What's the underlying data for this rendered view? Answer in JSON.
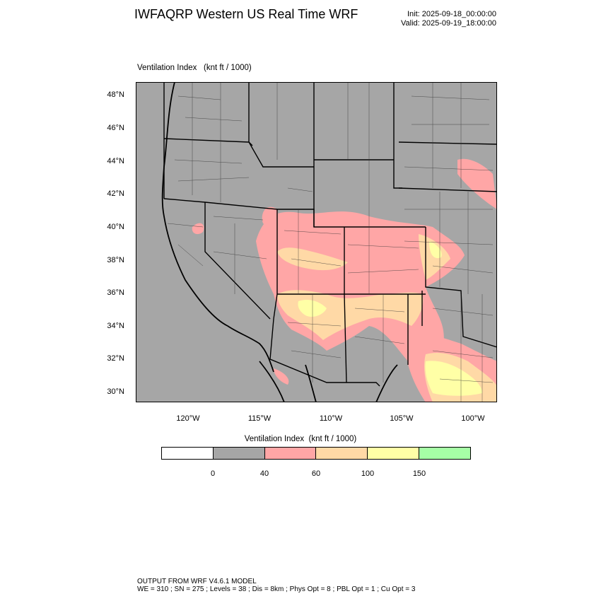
{
  "header": {
    "title": "IWFAQRP Western US Real Time WRF",
    "init": "Init: 2025-09-18_00:00:00",
    "valid": "Valid: 2025-09-19_18:00:00"
  },
  "panel": {
    "field_name": "Ventilation Index",
    "units": "(knt ft / 1000)"
  },
  "latitudes": [
    "48°N",
    "46°N",
    "44°N",
    "42°N",
    "40°N",
    "38°N",
    "36°N",
    "34°N",
    "32°N",
    "30°N"
  ],
  "longitudes": [
    "120°W",
    "115°W",
    "110°W",
    "105°W",
    "100°W"
  ],
  "colorbar": {
    "title": "Ventilation Index  (knt ft / 1000)",
    "colors": [
      "#ffffff",
      "#a6a6a6",
      "#ffa6a6",
      "#ffd9a6",
      "#ffffa6",
      "#a6ffa6"
    ],
    "labels": [
      "0",
      "40",
      "60",
      "100",
      "150"
    ]
  },
  "footer": {
    "line1": "OUTPUT FROM WRF V4.6.1 MODEL",
    "line2": "WE = 310 ; SN = 275 ; Levels = 38 ; Dis = 8km ; Phys Opt = 8 ; PBL Opt = 1 ; Cu Opt = 3"
  }
}
